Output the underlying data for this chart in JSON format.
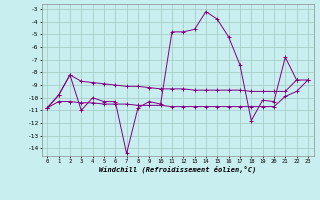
{
  "x": [
    0,
    1,
    2,
    3,
    4,
    5,
    6,
    7,
    8,
    9,
    10,
    11,
    12,
    13,
    14,
    15,
    16,
    17,
    18,
    19,
    20,
    21,
    22,
    23
  ],
  "main_line": [
    -10.8,
    -9.8,
    -8.2,
    -11.0,
    -10.0,
    -10.3,
    -10.3,
    -14.4,
    -10.8,
    -10.3,
    -10.5,
    -4.8,
    -4.8,
    -4.6,
    -3.2,
    -3.8,
    -5.2,
    -7.4,
    -11.8,
    -10.2,
    -10.3,
    -6.8,
    -8.6,
    null
  ],
  "trend_upper": [
    -10.8,
    -9.8,
    -8.2,
    -8.7,
    -8.8,
    -8.9,
    -9.0,
    -9.1,
    -9.1,
    -9.2,
    -9.3,
    -9.3,
    -9.3,
    -9.4,
    -9.4,
    -9.4,
    -9.4,
    -9.4,
    -9.5,
    -9.5,
    -9.5,
    -9.5,
    -8.6,
    -8.6
  ],
  "trend_lower": [
    -10.8,
    -10.3,
    -10.3,
    -10.4,
    -10.4,
    -10.5,
    -10.5,
    -10.5,
    -10.6,
    -10.6,
    -10.6,
    -10.7,
    -10.7,
    -10.7,
    -10.7,
    -10.7,
    -10.7,
    -10.7,
    -10.7,
    -10.7,
    -10.7,
    -9.9,
    -9.5,
    -8.6
  ],
  "line_color": "#800080",
  "bg_color": "#c8eef0",
  "grid_color": "#a0c8c0",
  "xlabel": "Windchill (Refroidissement éolien,°C)",
  "ylim": [
    -14.6,
    -2.6
  ],
  "xlim": [
    -0.5,
    23.5
  ],
  "yticks": [
    -3,
    -4,
    -5,
    -6,
    -7,
    -8,
    -9,
    -10,
    -11,
    -12,
    -13,
    -14
  ],
  "xticks": [
    0,
    1,
    2,
    3,
    4,
    5,
    6,
    7,
    8,
    9,
    10,
    11,
    12,
    13,
    14,
    15,
    16,
    17,
    18,
    19,
    20,
    21,
    22,
    23
  ]
}
